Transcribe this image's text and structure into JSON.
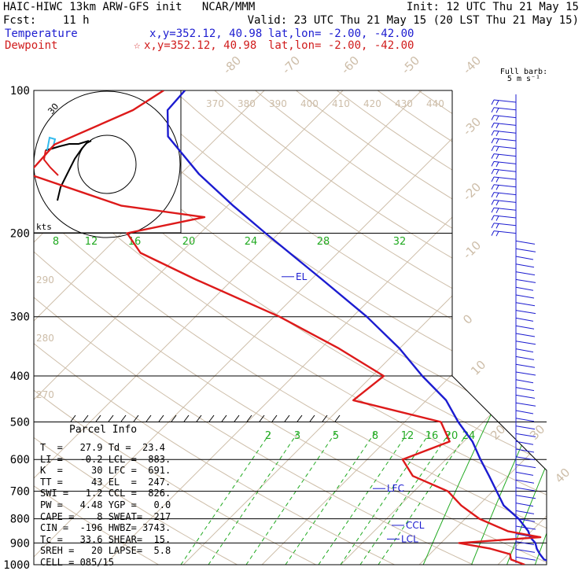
{
  "header": {
    "title_left": "HAIC-HIWC 13km ARW-GFS init   NCAR/MMM",
    "init_right": "Init: 12 UTC Thu 21 May 15",
    "fcst_left": "Fcst:    11 h",
    "valid_right": "Valid: 23 UTC Thu 21 May 15 (20 LST Thu 21 May 15)",
    "temp_label": "Temperature",
    "temp_xy": "x,y=352.12, 40.98",
    "temp_latlon": "lat,lon= -2.00, -42.00",
    "dew_label": "Dewpoint",
    "dew_star": "☆",
    "dew_xy": "x,y=352.12, 40.98",
    "dew_latlon": "lat,lon= -2.00, -42.00"
  },
  "barb_key": {
    "line1": "Full barb:",
    "line2": "5 m s⁻¹"
  },
  "hodograph": {
    "ring_label": "30",
    "units_label": "kts"
  },
  "parcel_info": {
    "title": "Parcel Info",
    "lines": [
      "T  =   27.9 Td =  23.4",
      "LI =   -0.2 LCL =  883.",
      "K  =     30 LFC =  691.",
      "TT =     43 EL  =  247.",
      "SWI =   1.2 CCL =  826.",
      "PW =   4.48 YGP =   0.0",
      "CAPE =    8 SWEAT=  217",
      "CIN =  -196 HWBZ= 3743.",
      "Tc =   33.6 SHEAR=  15.",
      "SREH =   20 LAPSE=  5.8",
      "CELL = 085/15"
    ]
  },
  "colors": {
    "temperature": "#1c1cd0",
    "dewpoint": "#dd1a1a",
    "mixing_ratio": "#22aa22",
    "isotherm_dryadiabat": "#cdbda8",
    "isobar": "#000000",
    "hodo_trace": "#000000",
    "hodo_high": "#33bbee",
    "hodo_low": "#dd1a1a"
  },
  "chart_data": {
    "type": "line",
    "subtype": "skew-T log-P sounding",
    "y_axis": {
      "label": "",
      "scale": "log pressure (hPa)",
      "ticks": [
        100,
        200,
        300,
        400,
        500,
        600,
        700,
        800,
        900,
        1000
      ]
    },
    "isotherm_labels_C": [
      "-80",
      "-70",
      "-60",
      "-50",
      "-40",
      "-30",
      "-20",
      "-10",
      "0",
      "10",
      "20",
      "30",
      "40"
    ],
    "theta_labels_K": [
      "370",
      "380",
      "390",
      "400",
      "410",
      "420",
      "430",
      "440"
    ],
    "theta_labels_lower_K": [
      "290",
      "280",
      "270"
    ],
    "mixing_ratio_labels_upper": [
      "8",
      "12",
      "16",
      "20",
      "24",
      "28",
      "32"
    ],
    "mixing_ratio_labels_lower": [
      "2",
      "3",
      "5",
      "8",
      "12",
      "16",
      "20",
      "24"
    ],
    "series": [
      {
        "name": "Temperature",
        "points": [
          [
            1000,
            27.9
          ],
          [
            975,
            25.2
          ],
          [
            950,
            24.0
          ],
          [
            925,
            22.9
          ],
          [
            900,
            22.0
          ],
          [
            875,
            20.6
          ],
          [
            850,
            19.6
          ],
          [
            800,
            16.8
          ],
          [
            750,
            13.2
          ],
          [
            700,
            10.5
          ],
          [
            650,
            7.6
          ],
          [
            600,
            4.4
          ],
          [
            550,
            1.1
          ],
          [
            500,
            -3.2
          ],
          [
            450,
            -7.5
          ],
          [
            400,
            -13.6
          ],
          [
            350,
            -20.0
          ],
          [
            300,
            -28.2
          ],
          [
            250,
            -38.7
          ],
          [
            200,
            -51.7
          ],
          [
            175,
            -59.3
          ],
          [
            150,
            -67.7
          ],
          [
            125,
            -76.4
          ],
          [
            110,
            -79.8
          ],
          [
            100,
            -80.1
          ]
        ]
      },
      {
        "name": "Dewpoint",
        "points": [
          [
            1000,
            23.4
          ],
          [
            975,
            21.0
          ],
          [
            950,
            20.2
          ],
          [
            925,
            17.0
          ],
          [
            900,
            12.3
          ],
          [
            875,
            21.9
          ],
          [
            850,
            17.0
          ],
          [
            800,
            11.8
          ],
          [
            750,
            7.8
          ],
          [
            700,
            4.3
          ],
          [
            650,
            -2.1
          ],
          [
            600,
            -5.5
          ],
          [
            550,
            -1.8
          ],
          [
            500,
            -5.4
          ],
          [
            450,
            -19.3
          ],
          [
            400,
            -18.5
          ],
          [
            350,
            -27.7
          ],
          [
            300,
            -39.3
          ],
          [
            250,
            -54.8
          ],
          [
            220,
            -65.1
          ],
          [
            200,
            -69.3
          ],
          [
            185,
            -61.5
          ],
          [
            175,
            -73.5
          ],
          [
            150,
            -89.4
          ],
          [
            130,
            -89.8
          ],
          [
            110,
            -84.2
          ],
          [
            100,
            -82.8
          ]
        ]
      }
    ],
    "annotations": [
      {
        "label": "EL",
        "p": 247
      },
      {
        "label": "LFC",
        "p": 691
      },
      {
        "label": "CCL",
        "p": 826
      },
      {
        "label": "LCL",
        "p": 883
      }
    ],
    "wind_barbs": {
      "units": "m s-1",
      "levels_hPa": [
        100,
        1000
      ]
    },
    "hodograph": {
      "ring_kts": 30
    },
    "grid": true
  }
}
